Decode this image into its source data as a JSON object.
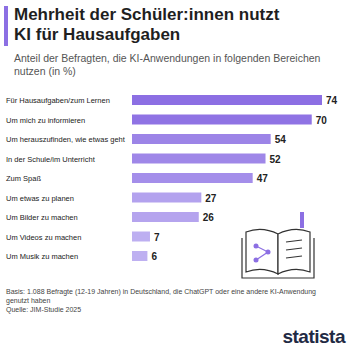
{
  "chart_data": {
    "type": "bar",
    "orientation": "horizontal",
    "title": "Mehrheit der Schüler:innen nutzt KI für Hausaufgaben",
    "subtitle": "Anteil der Befragten, die KI-Anwendungen in folgenden Bereichen nutzen (in %)",
    "categories": [
      "Für Hausaufgaben/zum Lernen",
      "Um mich zu informieren",
      "Um herauszufinden, wie etwas geht",
      "In der Schule/im Unterricht",
      "Zum Spaß",
      "Um etwas zu planen",
      "Um Bilder zu machen",
      "Um Videos zu machen",
      "Um Musik zu machen"
    ],
    "values": [
      74,
      70,
      54,
      52,
      47,
      27,
      26,
      7,
      6
    ],
    "colors": [
      "#8c6fe3",
      "#8f73e4",
      "#9c84e7",
      "#9f87e8",
      "#a48eea",
      "#b3a2ee",
      "#b5a4ee",
      "#bdaff1",
      "#beb0f1"
    ],
    "xlim": [
      0,
      74
    ],
    "data_labels": true,
    "tick_labels": false,
    "grid": false,
    "notes": [
      "Basis: 1.088 Befragte (12-19 Jahren) in Deutschland, die ChatGPT oder eine andere KI-Anwendung genutzt haben",
      "Quelle: JIM-Studie 2025"
    ],
    "brand": "statista"
  }
}
